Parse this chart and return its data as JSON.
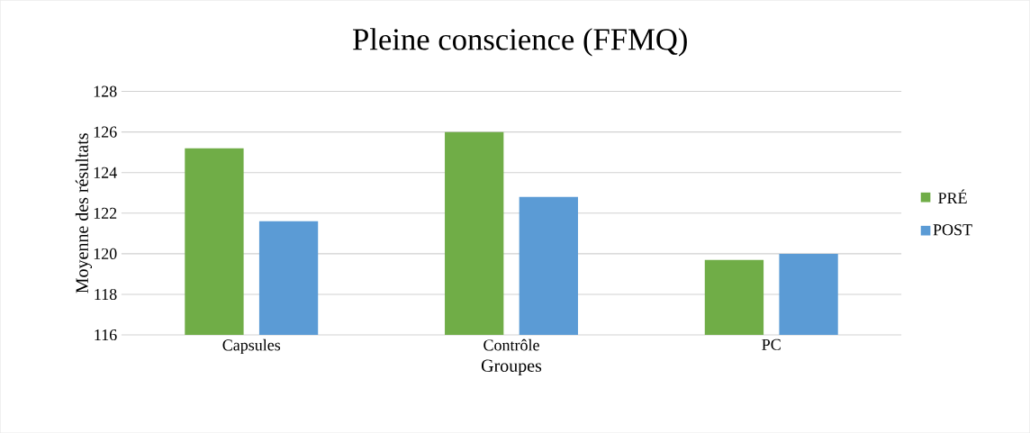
{
  "chart_data": {
    "type": "bar",
    "title": "Pleine conscience (FFMQ)",
    "xlabel": "Groupes",
    "ylabel": "Moyenne des résultats",
    "categories": [
      "Capsules",
      "Contrôle",
      "PC"
    ],
    "series": [
      {
        "name": "PRÉ",
        "color": "#70ad47",
        "values": [
          125.2,
          126.0,
          119.7
        ]
      },
      {
        "name": "POST",
        "color": "#5b9bd5",
        "values": [
          121.6,
          122.8,
          120.0
        ]
      }
    ],
    "ylim": [
      116,
      128
    ],
    "yticks": [
      116,
      118,
      120,
      122,
      124,
      126,
      128
    ],
    "grid": "y",
    "legend": "right"
  }
}
